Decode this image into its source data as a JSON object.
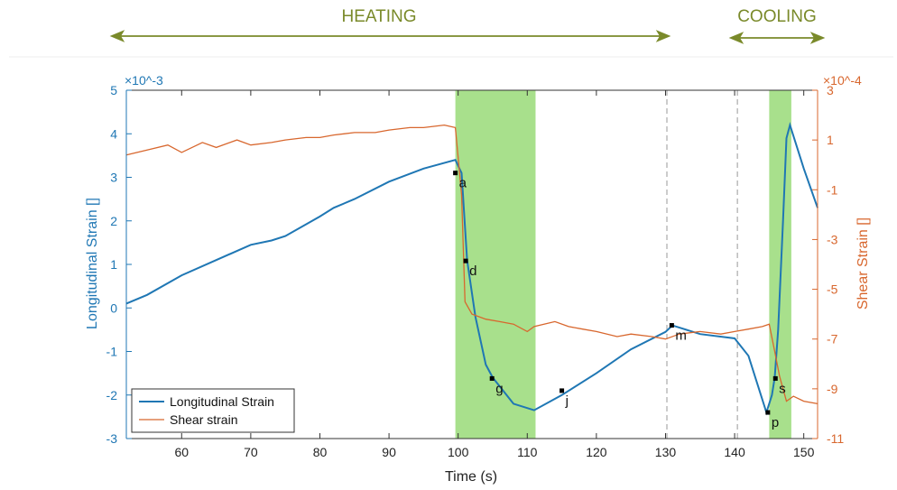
{
  "top_annotations": {
    "heating_label": "HEATING",
    "cooling_label": "COOLING"
  },
  "chart_data": {
    "type": "line",
    "title": "",
    "xlabel": "Time (s)",
    "ylabel_left": "Longitudinal Strain []",
    "ylabel_right": "Shear Strain []",
    "left_exponent": "×10^-3",
    "right_exponent": "×10^-4",
    "xlim": [
      52,
      152
    ],
    "ylim_left": [
      -3,
      5
    ],
    "ylim_right": [
      -11,
      3
    ],
    "x_ticks": [
      60,
      70,
      80,
      90,
      100,
      110,
      120,
      130,
      140,
      150
    ],
    "y_ticks_left": [
      -3,
      -2,
      -1,
      0,
      1,
      2,
      3,
      4,
      5
    ],
    "y_ticks_right": [
      -11,
      -9,
      -7,
      -5,
      -3,
      -1,
      1,
      3
    ],
    "shaded_regions": [
      [
        99.6,
        111.2
      ],
      [
        145.0,
        148.2
      ]
    ],
    "dashed_lines": [
      130.2,
      140.4
    ],
    "legend_placement": "bottom-left",
    "colors": {
      "longitudinal": "#1f77b4",
      "shear": "#d8672e",
      "shade": "#a8e08c",
      "annotation": "#7a8a2a",
      "axis_left": "#1f77b4",
      "axis_right": "#d8672e"
    },
    "series": [
      {
        "name": "Longitudinal Strain",
        "axis": "left",
        "x": [
          52,
          55,
          60,
          65,
          70,
          73,
          75,
          80,
          82,
          85,
          90,
          95,
          99.6,
          100.5,
          101.3,
          102.5,
          104,
          105,
          108,
          111,
          115,
          120,
          125,
          130,
          131,
          135,
          140,
          142,
          144.6,
          145.4,
          145.8,
          146.3,
          147,
          147.5,
          148,
          150,
          152
        ],
        "y": [
          0.1,
          0.3,
          0.75,
          1.1,
          1.45,
          1.55,
          1.65,
          2.1,
          2.3,
          2.5,
          2.9,
          3.2,
          3.4,
          3.1,
          1.1,
          -0.2,
          -1.3,
          -1.6,
          -2.2,
          -2.35,
          -2.0,
          -1.5,
          -0.95,
          -0.55,
          -0.4,
          -0.6,
          -0.7,
          -1.1,
          -2.4,
          -2.0,
          -1.6,
          -0.5,
          2.0,
          3.9,
          4.2,
          3.2,
          2.3
        ]
      },
      {
        "name": "Shear strain",
        "axis": "right",
        "x": [
          52,
          55,
          58,
          60,
          63,
          65,
          68,
          70,
          73,
          75,
          78,
          80,
          82,
          85,
          88,
          90,
          93,
          95,
          98,
          99.6,
          100.5,
          101,
          102,
          104,
          106,
          108,
          110,
          111,
          114,
          116,
          118,
          120,
          123,
          125,
          128,
          130,
          132,
          135,
          138,
          140,
          142,
          144,
          145,
          145.8,
          146.5,
          147.5,
          148.5,
          150,
          152
        ],
        "y": [
          0.4,
          0.6,
          0.8,
          0.5,
          0.9,
          0.7,
          1.0,
          0.8,
          0.9,
          1.0,
          1.1,
          1.1,
          1.2,
          1.3,
          1.3,
          1.4,
          1.5,
          1.5,
          1.6,
          1.5,
          -1.2,
          -5.5,
          -6.0,
          -6.2,
          -6.3,
          -6.4,
          -6.7,
          -6.5,
          -6.3,
          -6.5,
          -6.6,
          -6.7,
          -6.9,
          -6.8,
          -6.9,
          -7.0,
          -6.8,
          -6.7,
          -6.8,
          -6.7,
          -6.6,
          -6.5,
          -6.4,
          -7.5,
          -8.5,
          -9.5,
          -9.3,
          -9.5,
          -9.6
        ]
      }
    ],
    "point_labels": [
      {
        "label": "a",
        "x": 99.6,
        "y": 3.1
      },
      {
        "label": "d",
        "x": 101.1,
        "y": 1.08
      },
      {
        "label": "g",
        "x": 104.9,
        "y": -1.62
      },
      {
        "label": "j",
        "x": 115.0,
        "y": -1.9
      },
      {
        "label": "m",
        "x": 130.9,
        "y": -0.4
      },
      {
        "label": "p",
        "x": 144.8,
        "y": -2.4
      },
      {
        "label": "s",
        "x": 145.9,
        "y": -1.62
      }
    ]
  }
}
